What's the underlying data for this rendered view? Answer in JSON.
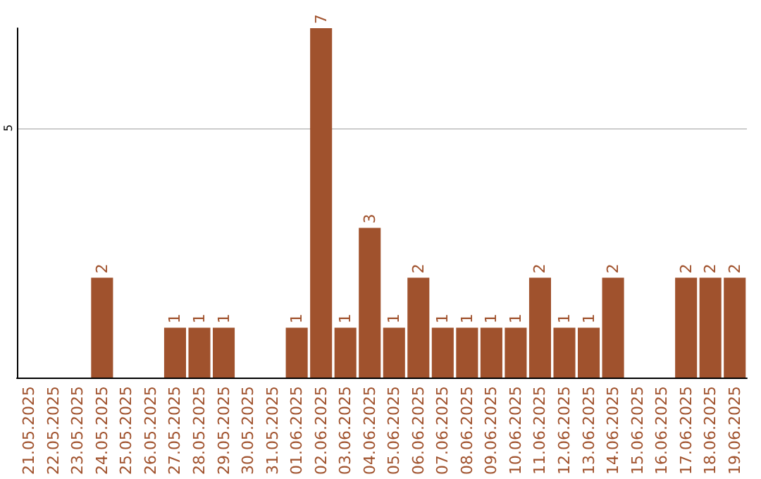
{
  "chart_data": {
    "type": "bar",
    "categories": [
      "21.05.2025",
      "22.05.2025",
      "23.05.2025",
      "24.05.2025",
      "25.05.2025",
      "26.05.2025",
      "27.05.2025",
      "28.05.2025",
      "29.05.2025",
      "30.05.2025",
      "31.05.2025",
      "01.06.2025",
      "02.06.2025",
      "03.06.2025",
      "04.06.2025",
      "05.06.2025",
      "06.06.2025",
      "07.06.2025",
      "08.06.2025",
      "09.06.2025",
      "10.06.2025",
      "11.06.2025",
      "12.06.2025",
      "13.06.2025",
      "14.06.2025",
      "15.06.2025",
      "16.06.2025",
      "17.06.2025",
      "18.06.2025",
      "19.06.2025"
    ],
    "values": [
      0,
      0,
      0,
      2,
      0,
      0,
      1,
      1,
      1,
      0,
      0,
      1,
      7,
      1,
      3,
      1,
      2,
      1,
      1,
      1,
      1,
      2,
      1,
      1,
      2,
      0,
      0,
      2,
      2,
      2
    ],
    "value_labels": [
      null,
      null,
      null,
      "2",
      null,
      null,
      "1",
      "1",
      "1",
      null,
      null,
      "1",
      "7",
      "1",
      "3",
      "1",
      "2",
      "1",
      "1",
      "1",
      "1",
      "2",
      "1",
      "1",
      "2",
      null,
      null,
      "2",
      "2",
      "2"
    ],
    "color": "#a0522d",
    "ylim": [
      0,
      7
    ],
    "yticks": [
      5
    ],
    "grid": "y"
  }
}
